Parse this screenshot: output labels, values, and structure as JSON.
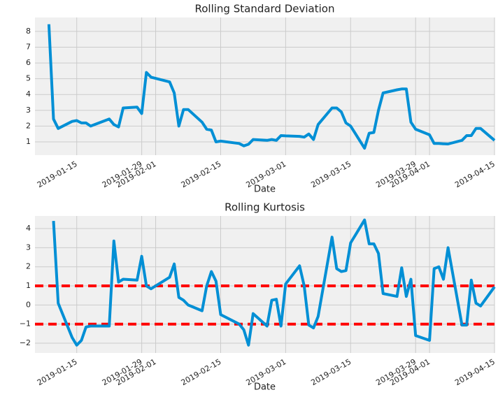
{
  "chart_data": [
    {
      "type": "line",
      "title": "Rolling Standard Deviation",
      "xlabel": "Date",
      "x": [
        "2019-01-09",
        "2019-01-10",
        "2019-01-11",
        "2019-01-14",
        "2019-01-15",
        "2019-01-16",
        "2019-01-17",
        "2019-01-18",
        "2019-01-22",
        "2019-01-23",
        "2019-01-24",
        "2019-01-25",
        "2019-01-28",
        "2019-01-29",
        "2019-01-30",
        "2019-01-31",
        "2019-02-04",
        "2019-02-05",
        "2019-02-06",
        "2019-02-07",
        "2019-02-08",
        "2019-02-11",
        "2019-02-12",
        "2019-02-13",
        "2019-02-14",
        "2019-02-15",
        "2019-02-19",
        "2019-02-20",
        "2019-02-21",
        "2019-02-22",
        "2019-02-25",
        "2019-02-26",
        "2019-02-27",
        "2019-02-28",
        "2019-03-01",
        "2019-03-04",
        "2019-03-05",
        "2019-03-06",
        "2019-03-07",
        "2019-03-08",
        "2019-03-11",
        "2019-03-12",
        "2019-03-13",
        "2019-03-14",
        "2019-03-15",
        "2019-03-18",
        "2019-03-19",
        "2019-03-20",
        "2019-03-21",
        "2019-03-22",
        "2019-03-25",
        "2019-03-26",
        "2019-03-27",
        "2019-03-28",
        "2019-03-29",
        "2019-04-01",
        "2019-04-02",
        "2019-04-03",
        "2019-04-04",
        "2019-04-05",
        "2019-04-08",
        "2019-04-09",
        "2019-04-10",
        "2019-04-11",
        "2019-04-12",
        "2019-04-15"
      ],
      "series": [
        {
          "name": "std",
          "color": "#008fd5",
          "values": [
            8.45,
            2.45,
            1.85,
            2.3,
            2.35,
            2.2,
            2.2,
            2.0,
            2.45,
            2.1,
            1.95,
            3.15,
            3.2,
            2.8,
            5.4,
            5.1,
            4.8,
            4.1,
            2.0,
            3.05,
            3.05,
            2.25,
            1.8,
            1.75,
            1.0,
            1.05,
            0.9,
            0.75,
            0.85,
            1.15,
            1.1,
            1.15,
            1.1,
            1.4,
            1.38,
            1.35,
            1.3,
            1.5,
            1.15,
            2.1,
            3.15,
            3.15,
            2.9,
            2.2,
            2.0,
            0.6,
            1.55,
            1.6,
            3.0,
            4.1,
            4.3,
            4.35,
            4.35,
            2.25,
            1.8,
            1.45,
            0.9,
            0.9,
            0.88,
            0.87,
            1.1,
            1.4,
            1.4,
            1.85,
            1.85,
            1.1
          ]
        }
      ],
      "xlim": [
        "2019-01-06",
        "2019-04-15"
      ],
      "xticks": [
        "2019-01-15",
        "2019-01-29",
        "2019-02-01",
        "2019-02-15",
        "2019-03-01",
        "2019-03-15",
        "2019-03-29",
        "2019-04-01",
        "2019-04-15"
      ],
      "ylim": [
        0.16,
        8.88
      ],
      "yticks": [
        1,
        2,
        3,
        4,
        5,
        6,
        7,
        8
      ],
      "grid": true
    },
    {
      "type": "line",
      "title": "Rolling Kurtosis",
      "xlabel": "Date",
      "x": [
        "2019-01-09",
        "2019-01-10",
        "2019-01-11",
        "2019-01-14",
        "2019-01-15",
        "2019-01-16",
        "2019-01-17",
        "2019-01-18",
        "2019-01-22",
        "2019-01-23",
        "2019-01-24",
        "2019-01-25",
        "2019-01-28",
        "2019-01-29",
        "2019-01-30",
        "2019-01-31",
        "2019-02-04",
        "2019-02-05",
        "2019-02-06",
        "2019-02-07",
        "2019-02-08",
        "2019-02-11",
        "2019-02-12",
        "2019-02-13",
        "2019-02-14",
        "2019-02-15",
        "2019-02-19",
        "2019-02-20",
        "2019-02-21",
        "2019-02-22",
        "2019-02-25",
        "2019-02-26",
        "2019-02-27",
        "2019-02-28",
        "2019-03-01",
        "2019-03-04",
        "2019-03-05",
        "2019-03-06",
        "2019-03-07",
        "2019-03-08",
        "2019-03-11",
        "2019-03-12",
        "2019-03-13",
        "2019-03-14",
        "2019-03-15",
        "2019-03-18",
        "2019-03-19",
        "2019-03-20",
        "2019-03-21",
        "2019-03-22",
        "2019-03-25",
        "2019-03-26",
        "2019-03-27",
        "2019-03-28",
        "2019-03-29",
        "2019-04-01",
        "2019-04-02",
        "2019-04-03",
        "2019-04-04",
        "2019-04-05",
        "2019-04-08",
        "2019-04-09",
        "2019-04-10",
        "2019-04-11",
        "2019-04-12",
        "2019-04-15"
      ],
      "series": [
        {
          "name": "kurtosis",
          "color": "#008fd5",
          "values": [
            null,
            4.4,
            0.1,
            -1.7,
            -2.1,
            -1.85,
            -1.15,
            -1.1,
            -1.1,
            3.35,
            1.2,
            1.35,
            1.3,
            2.55,
            1.0,
            0.85,
            1.45,
            2.15,
            0.4,
            0.25,
            0.0,
            -0.3,
            1.0,
            1.75,
            1.25,
            -0.5,
            -1.0,
            -1.3,
            -2.1,
            -0.45,
            -1.1,
            0.25,
            0.3,
            -1.1,
            1.1,
            2.05,
            1.0,
            -1.05,
            -1.2,
            -0.6,
            3.55,
            1.9,
            1.75,
            1.8,
            3.25,
            4.45,
            3.2,
            3.2,
            2.7,
            0.6,
            0.45,
            1.95,
            0.45,
            1.35,
            -1.6,
            -1.85,
            1.9,
            2.0,
            1.35,
            3.0,
            -1.05,
            -1.05,
            1.3,
            0.1,
            -0.05,
            0.95
          ]
        }
      ],
      "hlines": [
        1,
        -1
      ],
      "hline_color": "#ff0000",
      "xlim": [
        "2019-01-06",
        "2019-04-15"
      ],
      "xticks": [
        "2019-01-15",
        "2019-01-29",
        "2019-02-01",
        "2019-02-15",
        "2019-03-01",
        "2019-03-15",
        "2019-03-29",
        "2019-04-01",
        "2019-04-15"
      ],
      "ylim": [
        -2.51,
        4.66
      ],
      "yticks": [
        {
          "value": -2,
          "label": "−2"
        },
        {
          "value": -1,
          "label": "−1"
        },
        0,
        1,
        2,
        3,
        4
      ],
      "grid": true
    }
  ]
}
